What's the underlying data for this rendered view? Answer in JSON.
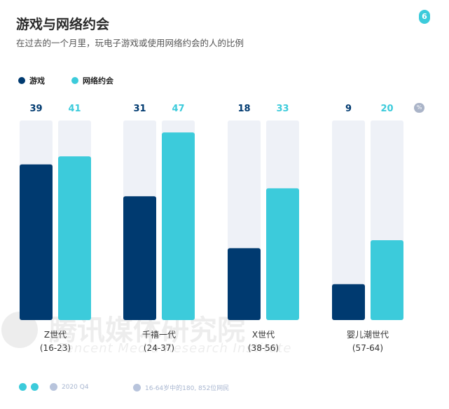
{
  "header": {
    "title": "游戏与网络约会",
    "subtitle": "在过去的一个月里，玩电子游戏或使用网络约会的人的比例",
    "page_number": "6"
  },
  "colors": {
    "games": "#003a70",
    "dating": "#3ccbdb",
    "track": "#eef1f7"
  },
  "watermark": {
    "cn": "腾讯媒体研究院",
    "en": "Tencent Media Research Institute"
  },
  "footer": {
    "date": "2020 Q4",
    "sample": "16-64岁中的180, 852位网民"
  },
  "chart_data": {
    "type": "bar",
    "title": "游戏与网络约会",
    "unit": "%",
    "categories": [
      "Z世代",
      "千禧一代",
      "X世代",
      "婴儿潮世代"
    ],
    "category_sublabels": [
      "(16-23)",
      "(24-37)",
      "(38-56)",
      "(57-64)"
    ],
    "series": [
      {
        "name": "游戏",
        "values": [
          39,
          31,
          18,
          9
        ]
      },
      {
        "name": "网络约会",
        "values": [
          41,
          47,
          33,
          20
        ]
      }
    ],
    "ylim": [
      0,
      50
    ],
    "legend": "top-left",
    "grid": false
  }
}
